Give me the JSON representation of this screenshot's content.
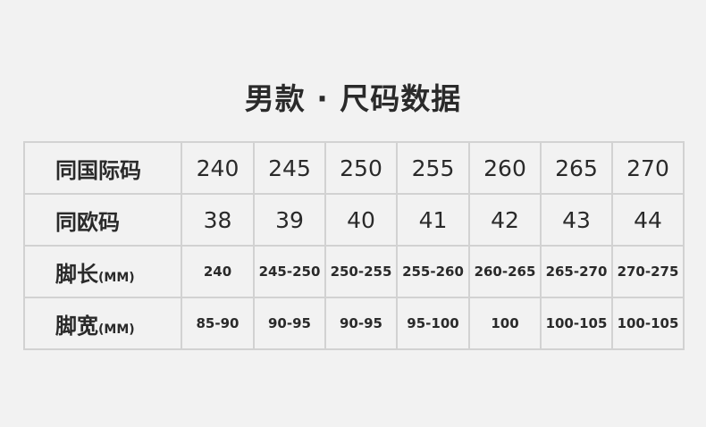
{
  "title": "男款 · 尺码数据",
  "rows": [
    {
      "label": "同国际码",
      "unit": "",
      "values": [
        "240",
        "245",
        "250",
        "255",
        "260",
        "265",
        "270"
      ]
    },
    {
      "label": "同欧码",
      "unit": "",
      "values": [
        "38",
        "39",
        "40",
        "41",
        "42",
        "43",
        "44"
      ]
    },
    {
      "label": "脚长",
      "unit": "(MM)",
      "values": [
        "240",
        "245-250",
        "250-255",
        "255-260",
        "260-265",
        "265-270",
        "270-275"
      ]
    },
    {
      "label": "脚宽",
      "unit": "(MM)",
      "values": [
        "85-90",
        "90-95",
        "90-95",
        "95-100",
        "100",
        "100-105",
        "100-105"
      ]
    }
  ]
}
